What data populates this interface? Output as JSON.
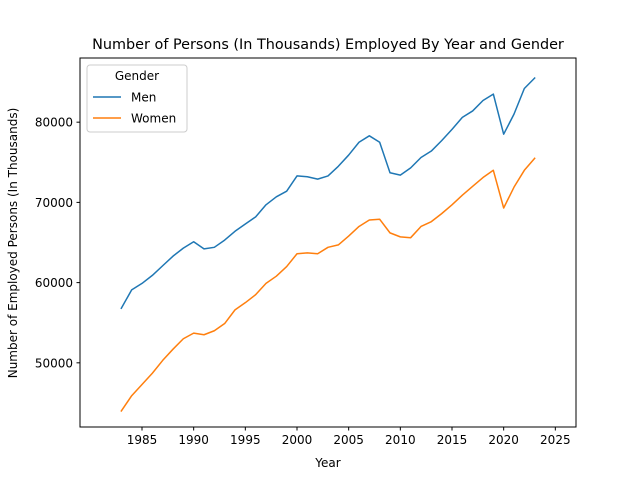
{
  "chart_data": {
    "type": "line",
    "title": "Number of Persons (In Thousands) Employed By Year and Gender",
    "xlabel": "Year",
    "ylabel": "Number of Employed Persons (In Thousands)",
    "xlim": [
      1979.0,
      2027.0
    ],
    "ylim": [
      42000,
      88000
    ],
    "xticks": [
      1985,
      1990,
      1995,
      2000,
      2005,
      2010,
      2015,
      2020,
      2025
    ],
    "yticks": [
      50000,
      60000,
      70000,
      80000
    ],
    "grid": false,
    "legend": {
      "title": "Gender",
      "placement": "top-left"
    },
    "x": [
      1983,
      1984,
      1985,
      1986,
      1987,
      1988,
      1989,
      1990,
      1991,
      1992,
      1993,
      1994,
      1995,
      1996,
      1997,
      1998,
      1999,
      2000,
      2001,
      2002,
      2003,
      2004,
      2005,
      2006,
      2007,
      2008,
      2009,
      2010,
      2011,
      2012,
      2013,
      2014,
      2015,
      2016,
      2017,
      2018,
      2019,
      2020,
      2021,
      2022,
      2023
    ],
    "series": [
      {
        "name": "Men",
        "color": "#1f77b4",
        "values": [
          56800,
          59100,
          59900,
          60900,
          62100,
          63300,
          64300,
          65100,
          64200,
          64400,
          65300,
          66400,
          67300,
          68200,
          69700,
          70700,
          71400,
          73300,
          73200,
          72900,
          73300,
          74500,
          75900,
          77500,
          78300,
          77500,
          73700,
          73400,
          74300,
          75600,
          76400,
          77700,
          79100,
          80600,
          81400,
          82700,
          83500,
          78500,
          81000,
          84200,
          85500
        ]
      },
      {
        "name": "Women",
        "color": "#ff7f0e",
        "values": [
          44000,
          45900,
          47300,
          48700,
          50300,
          51700,
          53000,
          53700,
          53500,
          54000,
          54900,
          56600,
          57500,
          58500,
          59900,
          60800,
          62000,
          63600,
          63700,
          63600,
          64400,
          64700,
          65800,
          67000,
          67800,
          67900,
          66200,
          65700,
          65600,
          67000,
          67600,
          68600,
          69700,
          70900,
          72000,
          73100,
          74000,
          69300,
          71900,
          74000,
          75500
        ]
      }
    ]
  }
}
